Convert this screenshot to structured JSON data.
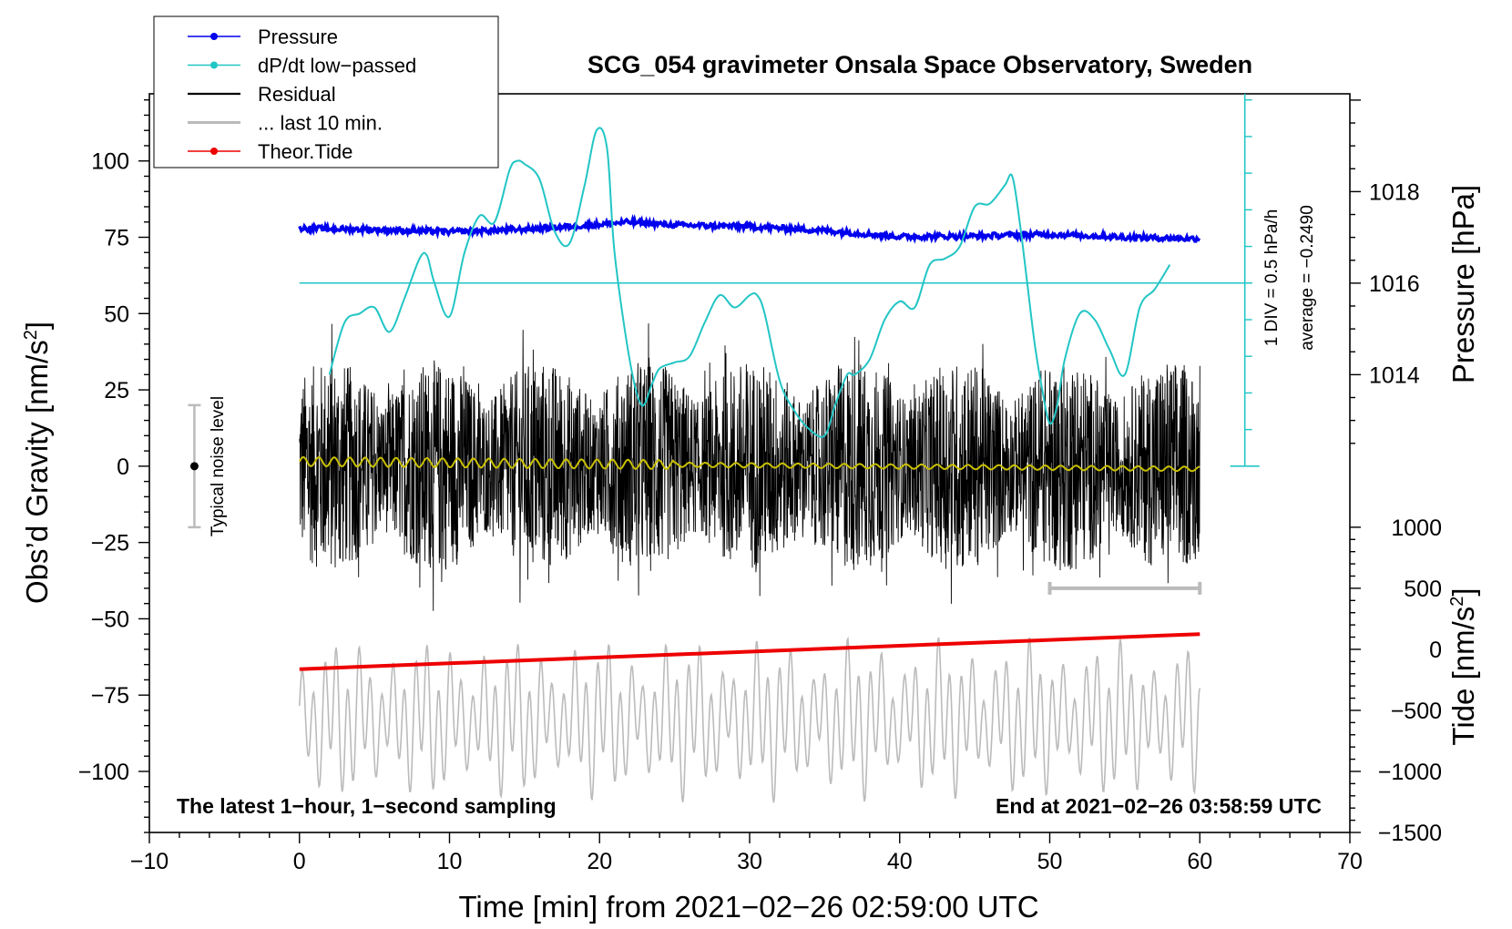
{
  "chart_data": {
    "type": "line",
    "title": "SCG_054 gravimeter Onsala Space Observatory, Sweden",
    "xlabel": "Time [min] from 2021−02−26 02:59:00 UTC",
    "ylabel_left": "Obs’d Gravity [nm/s",
    "ylabel_left_sup": "2",
    "ylabel_left_end": "]",
    "ylabel_right_pressure": "Pressure [hPa]",
    "ylabel_right_tide": "Tide [nm/s",
    "ylabel_right_tide_sup": "2",
    "ylabel_right_tide_end": "]",
    "xlim": [
      -10,
      70
    ],
    "ylim": [
      -120,
      122
    ],
    "x_ticks": [
      "−10",
      "0",
      "10",
      "20",
      "30",
      "40",
      "50",
      "60",
      "70"
    ],
    "x_tick_values": [
      -10,
      0,
      10,
      20,
      30,
      40,
      50,
      60,
      70
    ],
    "y_ticks": [
      "100",
      "75",
      "50",
      "25",
      "0",
      "−25",
      "−50",
      "−75",
      "−100"
    ],
    "y_tick_values": [
      100,
      75,
      50,
      25,
      0,
      -25,
      -50,
      -75,
      -100
    ],
    "pressure_ticks": [
      "1018",
      "1016",
      "1014"
    ],
    "pressure_tick_values": [
      1018,
      1016,
      1014
    ],
    "pressure_axis": {
      "value_at_gravity_0": 1012,
      "hpa_per_gravity_unit": 0.0667
    },
    "tide_ticks": [
      "1000",
      "500",
      "0",
      "−500",
      "−1000",
      "−1500"
    ],
    "tide_tick_values": [
      1000,
      500,
      0,
      -500,
      -1000,
      -1500
    ],
    "tide_axis": {
      "value_at_gravity_minus20": 1000,
      "value_at_gravity_minus120": -1500
    },
    "legend": {
      "position": "top-left",
      "entries": [
        {
          "label": "Pressure",
          "color": "#0000ee",
          "marker": true
        },
        {
          "label": "dP/dt low−passed",
          "color": "#22c5c5",
          "marker": true
        },
        {
          "label": "Residual",
          "color": "#000000",
          "marker": false
        },
        {
          "label": "... last 10 min.",
          "color": "#bbbbbb",
          "marker": false
        },
        {
          "label": "Theor.Tide",
          "color": "#ee0000",
          "marker": true
        }
      ]
    },
    "series": [
      {
        "name": "Pressure",
        "color": "#0000ee",
        "x": [
          0,
          5,
          10,
          15,
          20,
          22,
          25,
          30,
          35,
          40,
          45,
          50,
          55,
          60
        ],
        "values": [
          78,
          77.5,
          76.8,
          77.6,
          79.2,
          80,
          79,
          78.5,
          77.2,
          75.2,
          75.4,
          76,
          75,
          74.5
        ]
      },
      {
        "name": "dP/dt low−passed",
        "color": "#22c5c5",
        "x": [
          2,
          3,
          4,
          5,
          6,
          7,
          8,
          8.5,
          9,
          10,
          11,
          12,
          13,
          14,
          14.5,
          15,
          16,
          17,
          18,
          19,
          19.8,
          20.5,
          21,
          22,
          22.8,
          23.5,
          24,
          25,
          26,
          27,
          28,
          29,
          30,
          30.5,
          31,
          32,
          33,
          34,
          35,
          35.7,
          36.5,
          37,
          38,
          39,
          40,
          41,
          42,
          43,
          44,
          45,
          46,
          47,
          47.5,
          48,
          48.5,
          49,
          49.5,
          50,
          50.5,
          51,
          52,
          53,
          54,
          55,
          56,
          57,
          58
        ],
        "values": [
          30,
          47,
          50,
          52,
          44,
          55,
          68,
          69,
          60,
          49,
          70,
          82,
          80,
          97,
          100,
          99,
          94,
          77,
          73,
          92,
          110,
          104,
          70,
          35,
          20,
          27,
          32,
          34,
          36,
          47,
          56,
          52,
          56,
          56,
          50,
          28,
          18,
          12,
          10,
          20,
          30,
          30,
          35,
          48,
          54,
          52,
          66,
          68,
          72,
          85,
          86,
          92,
          95,
          80,
          60,
          40,
          25,
          14,
          20,
          35,
          50,
          48,
          38,
          30,
          52,
          58,
          66
        ]
      },
      {
        "name": "Residual",
        "color": "#000000",
        "x_range": [
          0,
          60
        ],
        "amplitude": 35
      },
      {
        "name": "Residual (low-passed)",
        "color": "#c8c000",
        "x_range": [
          0,
          60
        ],
        "amplitude": 3
      },
      {
        "name": "... last 10 min.",
        "color": "#bbbbbb",
        "x_range": [
          0,
          60
        ],
        "center": -83,
        "amplitude": 25
      },
      {
        "name": "Theor.Tide",
        "color": "#ee0000",
        "x": [
          0,
          60
        ],
        "values": [
          -66.5,
          -55
        ]
      }
    ],
    "annotations": {
      "noise_label": "Typical noise level",
      "noise_x": -7,
      "noise_range": [
        -20,
        20
      ],
      "noise_center": 0,
      "scale_bar_x": [
        50,
        60
      ],
      "scale_bar_y": -40,
      "pressure_ref_y": 60,
      "pressure_ref_x": [
        0,
        63.5
      ],
      "ddt_scale_x": 63,
      "ddt_scale_y_range": [
        0,
        122
      ],
      "div_label": "1 DIV = 0.5 hPa/h",
      "avg_label": "average = −0.2490",
      "footer_left": "The latest 1−hour, 1−second sampling",
      "footer_right": "End at 2021−02−26 03:58:59 UTC"
    }
  }
}
